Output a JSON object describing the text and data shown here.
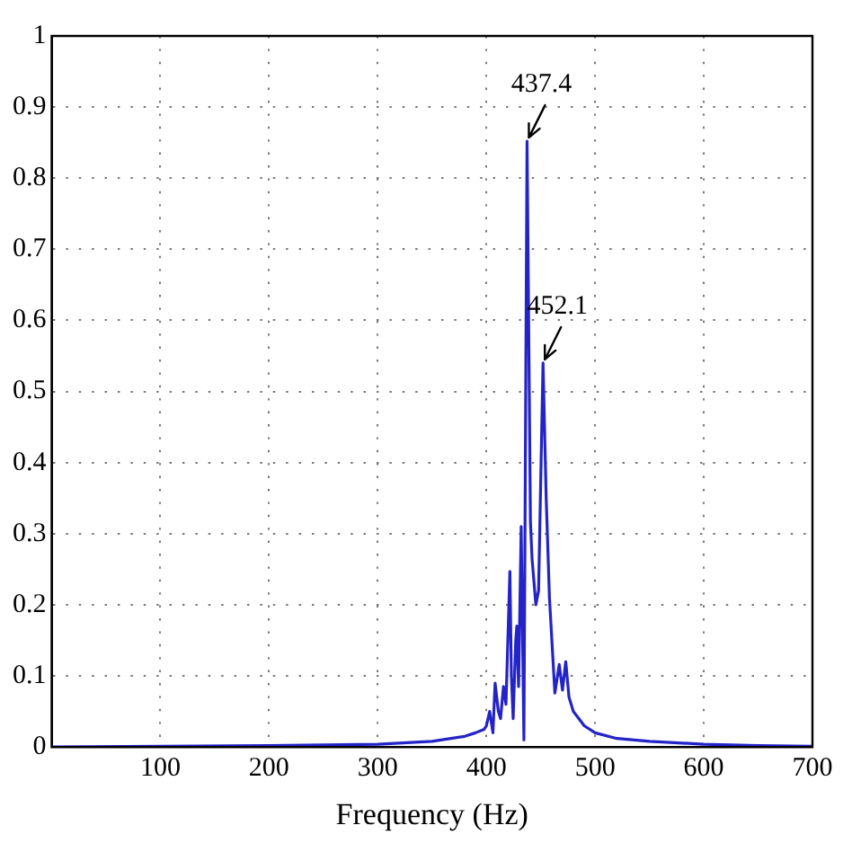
{
  "chart_data": {
    "type": "line",
    "xlabel": "Frequency (Hz)",
    "x": [
      0,
      100,
      200,
      300,
      350,
      380,
      390,
      398,
      400,
      403,
      406,
      408,
      411,
      413,
      415.7,
      418,
      421.6,
      423,
      424.6,
      427,
      428,
      429.6,
      432,
      434.5,
      437.4,
      440.5,
      442,
      445.5,
      448,
      452.1,
      455,
      458,
      463,
      467,
      470,
      473,
      476,
      480,
      485,
      490,
      500,
      520,
      550,
      600,
      650,
      700
    ],
    "series": [
      {
        "color": "#2323c8",
        "values": [
          0,
          0.001,
          0.002,
          0.004,
          0.008,
          0.015,
          0.02,
          0.025,
          0.03,
          0.05,
          0.02,
          0.09,
          0.05,
          0.04,
          0.085,
          0.06,
          0.247,
          0.1,
          0.04,
          0.15,
          0.17,
          0.085,
          0.31,
          0.01,
          0.852,
          0.317,
          0.265,
          0.2,
          0.22,
          0.54,
          0.35,
          0.21,
          0.076,
          0.116,
          0.08,
          0.12,
          0.07,
          0.05,
          0.04,
          0.03,
          0.02,
          0.012,
          0.008,
          0.004,
          0.002,
          0.001
        ]
      }
    ],
    "xlim": [
      0,
      700
    ],
    "xticks": [
      100,
      200,
      300,
      400,
      500,
      600,
      700
    ],
    "ylim": [
      0,
      1
    ],
    "yticks": [
      0,
      0.1,
      0.2,
      0.3,
      0.4,
      0.5,
      0.6,
      0.7,
      0.8,
      0.9,
      1
    ],
    "grid": true,
    "line_style": "solid",
    "marker": "none",
    "legend": false,
    "annotations": [
      {
        "text": "437.4",
        "x": 437.4,
        "y": 0.852
      },
      {
        "text": "452.1",
        "x": 452.1,
        "y": 0.54
      }
    ]
  }
}
